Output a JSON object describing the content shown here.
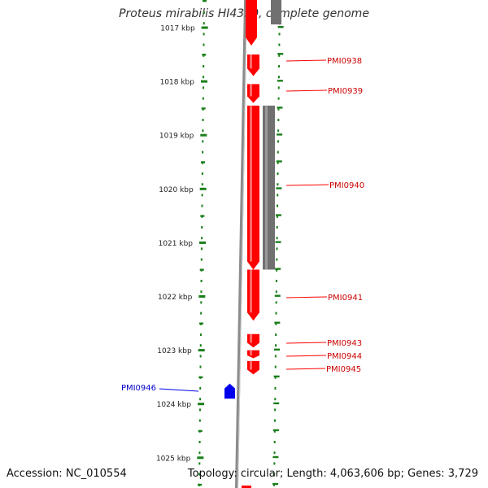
{
  "title": "Proteus mirabilis HI4320, complete genome",
  "footer": {
    "accession": "Accession: NC_010554",
    "summary": "Topology: circular; Length: 4,063,606 bp; Genes: 3,729"
  },
  "colors": {
    "forward_gene": "#ff0000",
    "reverse_gene": "#0000ee",
    "cds_feature": "#707070",
    "tick": "#1a7f1a",
    "backbone": "#808080",
    "text": "#333333"
  },
  "ruler": {
    "unit": "kbp",
    "ticks": [
      {
        "kbp": 1017,
        "label": "1017 kbp"
      },
      {
        "kbp": 1018,
        "label": "1018 kbp"
      },
      {
        "kbp": 1019,
        "label": "1019 kbp"
      },
      {
        "kbp": 1020,
        "label": "1020 kbp"
      },
      {
        "kbp": 1021,
        "label": "1021 kbp"
      },
      {
        "kbp": 1022,
        "label": "1022 kbp"
      },
      {
        "kbp": 1023,
        "label": "1023 kbp"
      },
      {
        "kbp": 1024,
        "label": "1024 kbp"
      },
      {
        "kbp": 1025,
        "label": "1025 kbp"
      }
    ]
  },
  "genes": [
    {
      "name": "PMI0938",
      "strand": "forward",
      "start_kbp": 1017.5,
      "end_kbp": 1017.9
    },
    {
      "name": "PMI0939",
      "strand": "forward",
      "start_kbp": 1018.05,
      "end_kbp": 1018.4
    },
    {
      "name": "PMI0940",
      "strand": "forward",
      "start_kbp": 1018.45,
      "end_kbp": 1021.5
    },
    {
      "name": "PMI0941",
      "strand": "forward",
      "start_kbp": 1021.5,
      "end_kbp": 1022.45
    },
    {
      "name": "PMI0943",
      "strand": "forward",
      "start_kbp": 1022.7,
      "end_kbp": 1022.95
    },
    {
      "name": "PMI0944",
      "strand": "forward",
      "start_kbp": 1023.0,
      "end_kbp": 1023.15
    },
    {
      "name": "PMI0945",
      "strand": "forward",
      "start_kbp": 1023.2,
      "end_kbp": 1023.45
    },
    {
      "name": "PMI0946",
      "strand": "reverse",
      "start_kbp": 1023.62,
      "end_kbp": 1023.9
    }
  ],
  "features": [
    {
      "type": "cds",
      "start_kbp": 1018.45,
      "end_kbp": 1021.5
    }
  ]
}
